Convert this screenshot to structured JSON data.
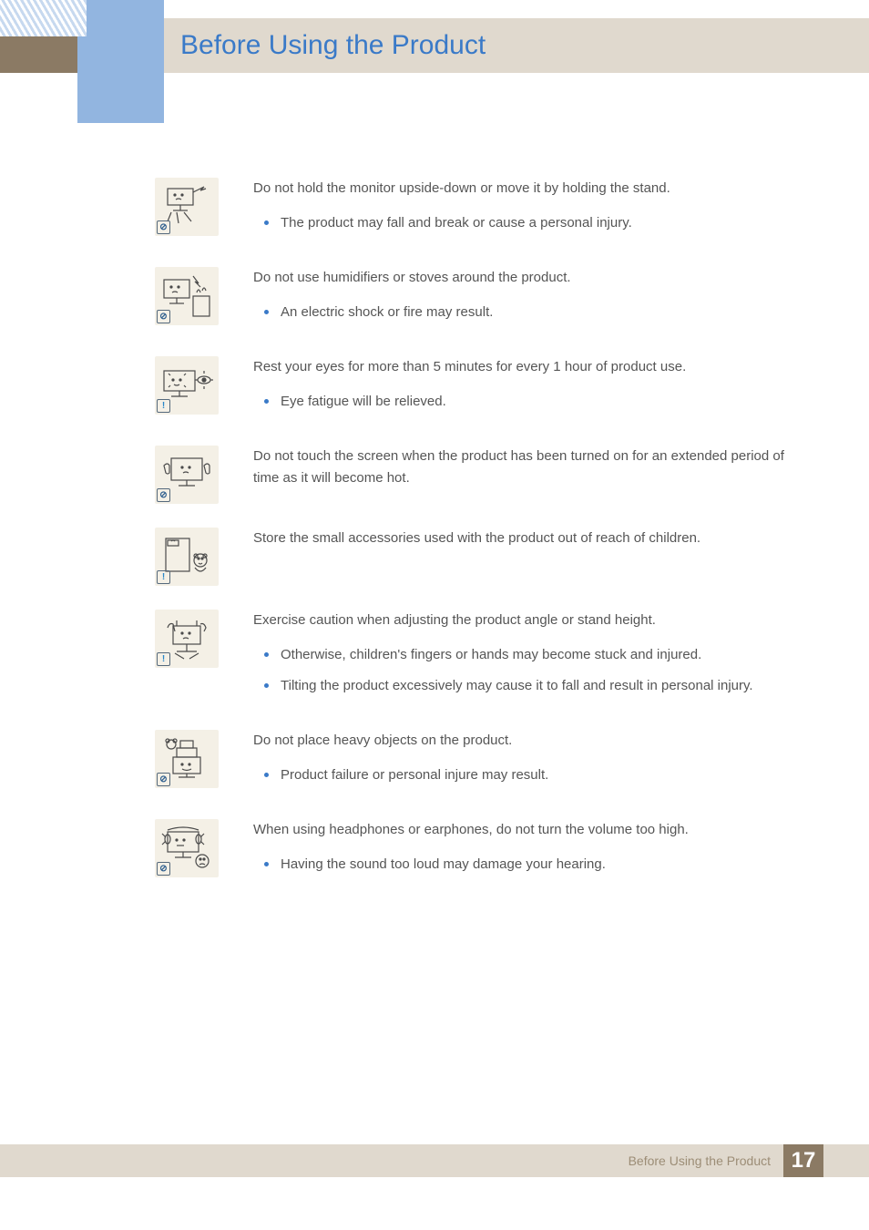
{
  "colors": {
    "title": "#3a7ac8",
    "band_dark": "#8b7a64",
    "band_light": "#e0d9ce",
    "accent_blue": "#92b5e0",
    "icon_bg": "#f4f0e6",
    "bullet": "#3a7ac8",
    "text": "#555555",
    "footer_text": "#9c8d76"
  },
  "page_title": "Before Using the Product",
  "warnings": [
    {
      "badge_type": "prohibit",
      "heading": "Do not hold the monitor upside-down or move it by holding the stand.",
      "bullets": [
        "The product may fall and break or cause a personal injury."
      ]
    },
    {
      "badge_type": "prohibit",
      "heading": "Do not use humidifiers or stoves around the product.",
      "bullets": [
        "An electric shock or fire may result."
      ]
    },
    {
      "badge_type": "info",
      "heading": "Rest your eyes for more than 5 minutes for every 1 hour of product use.",
      "bullets": [
        "Eye fatigue will be relieved."
      ]
    },
    {
      "badge_type": "prohibit",
      "heading": "Do not touch the screen when the product has been turned on for an extended period of time as it will become hot.",
      "bullets": []
    },
    {
      "badge_type": "info",
      "heading": "Store the small accessories used with the product out of reach of children.",
      "bullets": []
    },
    {
      "badge_type": "info",
      "heading": "Exercise caution when adjusting the product angle or stand height.",
      "bullets": [
        "Otherwise, children's fingers or hands may become stuck and injured.",
        "Tilting the product excessively may cause it to fall and result in personal injury."
      ]
    },
    {
      "badge_type": "prohibit",
      "heading": "Do not place heavy objects on the product.",
      "bullets": [
        "Product failure or personal injure may result."
      ]
    },
    {
      "badge_type": "prohibit",
      "heading": "When using headphones or earphones, do not turn the volume too high.",
      "bullets": [
        "Having the sound too loud may damage your hearing."
      ]
    }
  ],
  "footer": {
    "label": "Before Using the Product",
    "page": "17"
  },
  "badge_symbols": {
    "prohibit": "⊘",
    "info": "!"
  }
}
